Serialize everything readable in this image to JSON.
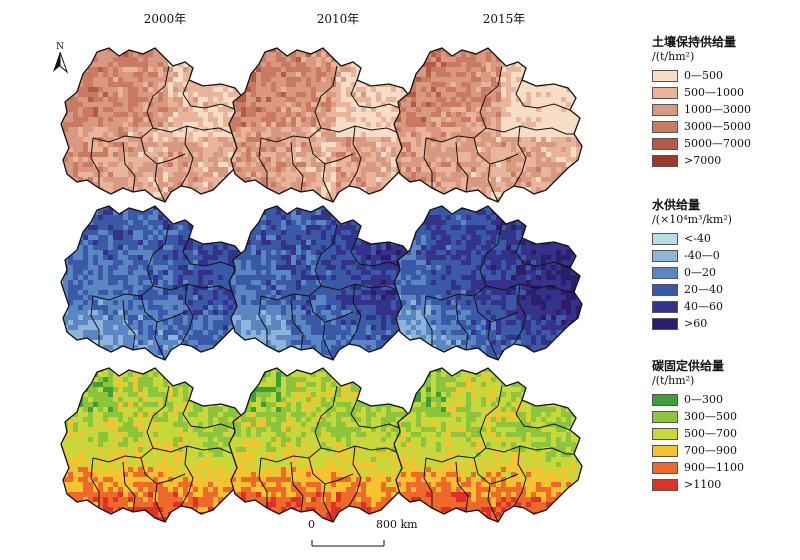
{
  "years": [
    "2000年",
    "2010年",
    "2015年"
  ],
  "north": "N",
  "rows": [
    {
      "title": "土壤保持供给量",
      "unit": "/(t/hm²)",
      "classes": [
        {
          "label": "0—500",
          "color": "#f7dcc6"
        },
        {
          "label": "500—1000",
          "color": "#e8b49c"
        },
        {
          "label": "1000—3000",
          "color": "#d99880"
        },
        {
          "label": "3000—5000",
          "color": "#c97a62"
        },
        {
          "label": "5000—7000",
          "color": "#b45a45"
        },
        {
          "label": ">7000",
          "color": "#9a3a28"
        }
      ]
    },
    {
      "title": "水供给量",
      "unit": "/(×10⁴m³/km²)",
      "classes": [
        {
          "label": "<-40",
          "color": "#b7dde6"
        },
        {
          "label": "-40—0",
          "color": "#8fb4da"
        },
        {
          "label": "0—20",
          "color": "#5b86c4"
        },
        {
          "label": "20—40",
          "color": "#3a5aa8"
        },
        {
          "label": "40—60",
          "color": "#34328a"
        },
        {
          "label": ">60",
          "color": "#2c1e6b"
        }
      ]
    },
    {
      "title": "碳固定供给量",
      "unit": "/(t/hm²)",
      "classes": [
        {
          "label": "0—300",
          "color": "#3e9e3a"
        },
        {
          "label": "300—500",
          "color": "#8cc43c"
        },
        {
          "label": "500—700",
          "color": "#c8d83a"
        },
        {
          "label": "700—900",
          "color": "#f7c22f"
        },
        {
          "label": "900—1100",
          "color": "#ef6a2a"
        },
        {
          "label": ">1100",
          "color": "#e0302a"
        }
      ]
    }
  ],
  "scale": {
    "start": "0",
    "end": "800 km"
  }
}
